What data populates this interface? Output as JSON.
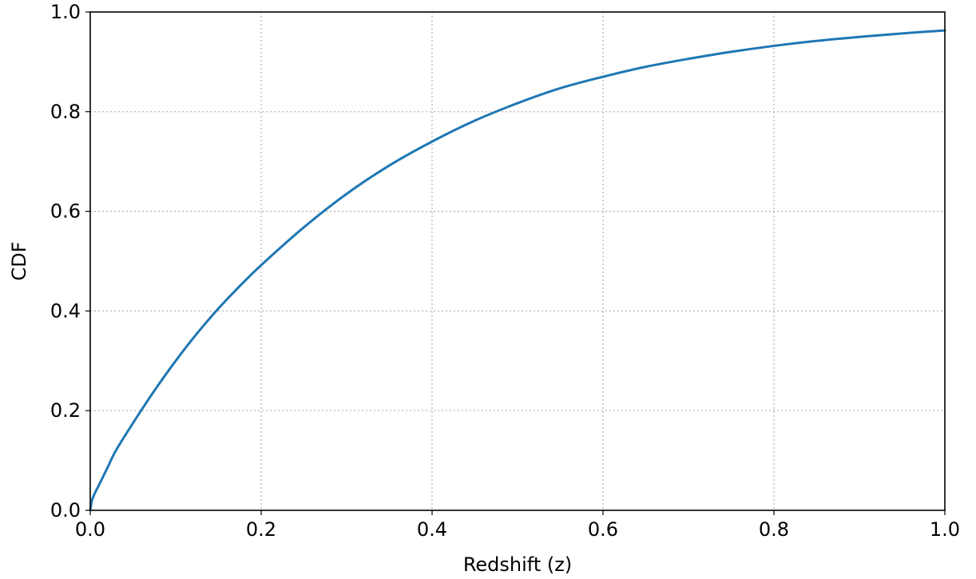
{
  "chart_data": {
    "type": "line",
    "title": "",
    "xlabel": "Redshift (z)",
    "ylabel": "CDF",
    "xlim": [
      0.0,
      1.0
    ],
    "ylim": [
      0.0,
      1.0
    ],
    "xticks": [
      "0.0",
      "0.2",
      "0.4",
      "0.6",
      "0.8",
      "1.0"
    ],
    "yticks": [
      "0.0",
      "0.2",
      "0.4",
      "0.6",
      "0.8",
      "1.0"
    ],
    "grid": true,
    "legend": "none",
    "series": [
      {
        "color": "#1f77b4",
        "x": [
          0.0,
          0.002,
          0.005,
          0.01,
          0.02,
          0.03,
          0.05,
          0.075,
          0.1,
          0.125,
          0.15,
          0.175,
          0.2,
          0.25,
          0.3,
          0.35,
          0.4,
          0.45,
          0.5,
          0.55,
          0.6,
          0.65,
          0.7,
          0.75,
          0.8,
          0.85,
          0.9,
          0.95,
          1.0
        ],
        "y": [
          0.0,
          0.02,
          0.033,
          0.05,
          0.085,
          0.12,
          0.175,
          0.24,
          0.3,
          0.355,
          0.405,
          0.45,
          0.492,
          0.568,
          0.635,
          0.692,
          0.74,
          0.782,
          0.817,
          0.847,
          0.87,
          0.89,
          0.906,
          0.92,
          0.932,
          0.942,
          0.95,
          0.957,
          0.963
        ]
      }
    ]
  }
}
